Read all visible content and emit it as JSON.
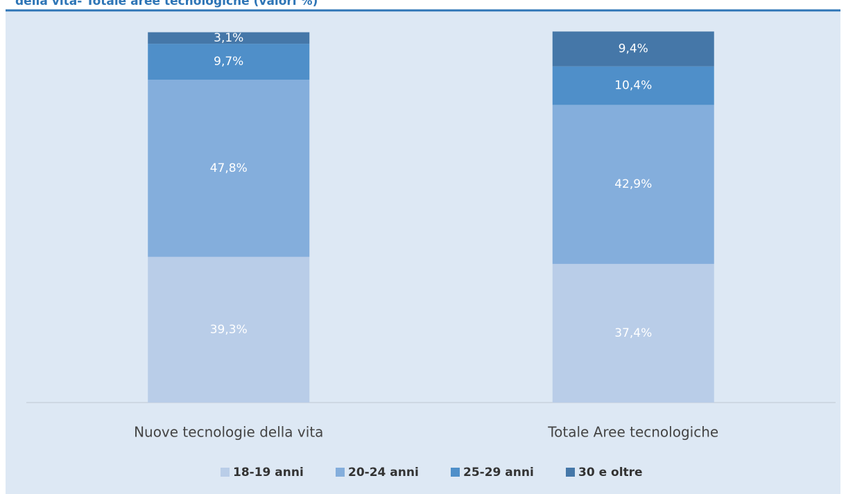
{
  "chart_data": {
    "type": "stacked_bar",
    "title": "della vita- Totale aree tecnologiche (valori %)",
    "categories": [
      "Nuove tecnologie della vita",
      "Totale Aree tecnologiche"
    ],
    "ylim": [
      0,
      100
    ],
    "series": [
      {
        "name": "18-19 anni",
        "color": "#b9cde8",
        "values": [
          39.3,
          37.4
        ],
        "value_labels": [
          "39,3%",
          "37,4%"
        ]
      },
      {
        "name": "20-24 anni",
        "color": "#84aedc",
        "values": [
          47.8,
          42.9
        ],
        "value_labels": [
          "47,8%",
          "42,9%"
        ]
      },
      {
        "name": "25-29 anni",
        "color": "#4f8fc9",
        "values": [
          9.7,
          10.4
        ],
        "value_labels": [
          "9,7%",
          "10,4%"
        ]
      },
      {
        "name": "30 e oltre",
        "color": "#4577a8",
        "values": [
          3.1,
          9.4
        ],
        "value_labels": [
          "3,1%",
          "9,4%"
        ]
      }
    ],
    "legend": "bottom"
  }
}
